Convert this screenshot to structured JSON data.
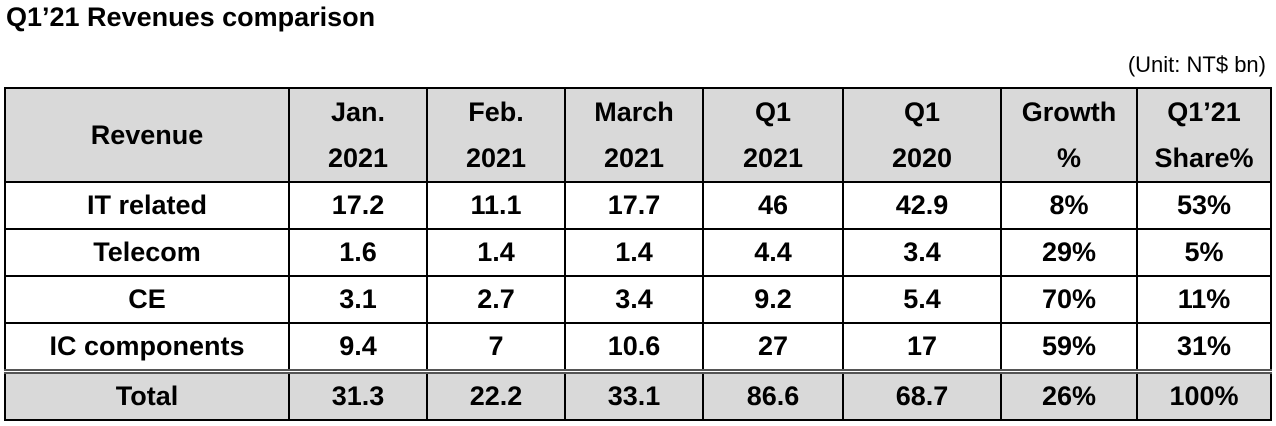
{
  "title": "Q1’21 Revenues comparison",
  "unit": "(Unit: NT$ bn)",
  "table": {
    "header": [
      [
        "Revenue"
      ],
      [
        "Jan.",
        "2021"
      ],
      [
        "Feb.",
        "2021"
      ],
      [
        "March",
        "2021"
      ],
      [
        "Q1",
        "2021"
      ],
      [
        "Q1",
        "2020"
      ],
      [
        "Growth",
        "%"
      ],
      [
        "Q1’21",
        "Share%"
      ]
    ],
    "rows": [
      [
        "IT related",
        "17.2",
        "11.1",
        "17.7",
        "46",
        "42.9",
        "8%",
        "53%"
      ],
      [
        "Telecom",
        "1.6",
        "1.4",
        "1.4",
        "4.4",
        "3.4",
        "29%",
        "5%"
      ],
      [
        "CE",
        "3.1",
        "2.7",
        "3.4",
        "9.2",
        "5.4",
        "70%",
        "11%"
      ],
      [
        "IC components",
        "9.4",
        "7",
        "10.6",
        "27",
        "17",
        "59%",
        "31%"
      ]
    ],
    "total": [
      "Total",
      "31.3",
      "22.2",
      "33.1",
      "86.6",
      "68.7",
      "26%",
      "100%"
    ]
  }
}
